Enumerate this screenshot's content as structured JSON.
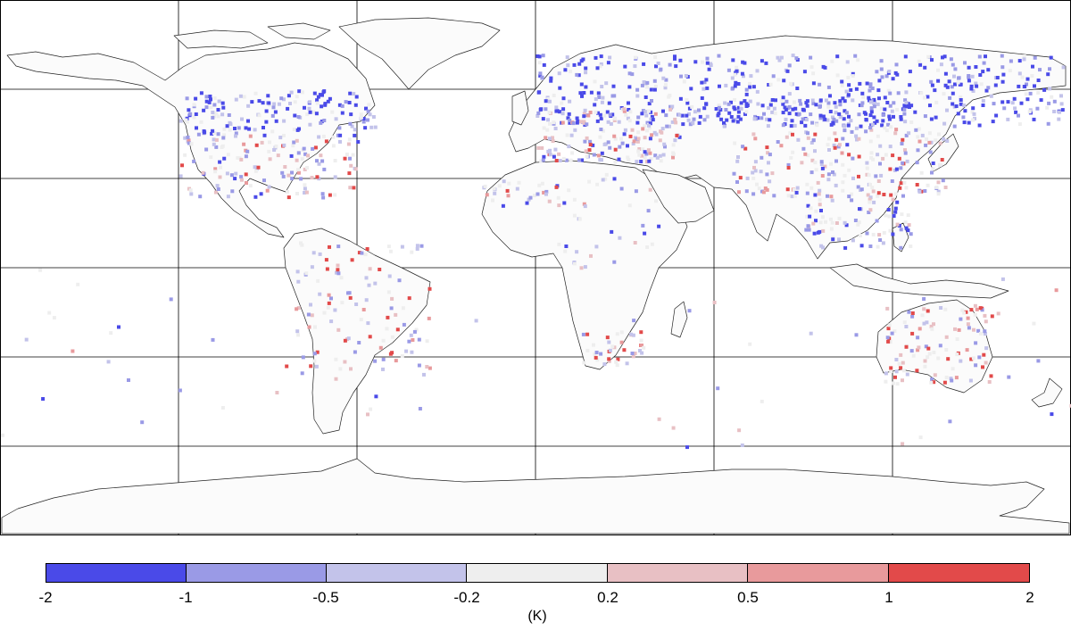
{
  "colorbar": {
    "unit_label": "(K)",
    "ticks": [
      "-2",
      "-1",
      "-0.5",
      "-0.2",
      "0.2",
      "0.5",
      "1",
      "2"
    ],
    "colors": [
      "#4a4ae8",
      "#9a9ae6",
      "#c3c3ea",
      "#eeeeee",
      "#e8c0c4",
      "#e89a9c",
      "#e24a4a"
    ]
  },
  "map": {
    "projection": "equirectangular",
    "graticule_degrees": 30,
    "land_fill": "#ffffff",
    "coastline_color": "#000000"
  }
}
